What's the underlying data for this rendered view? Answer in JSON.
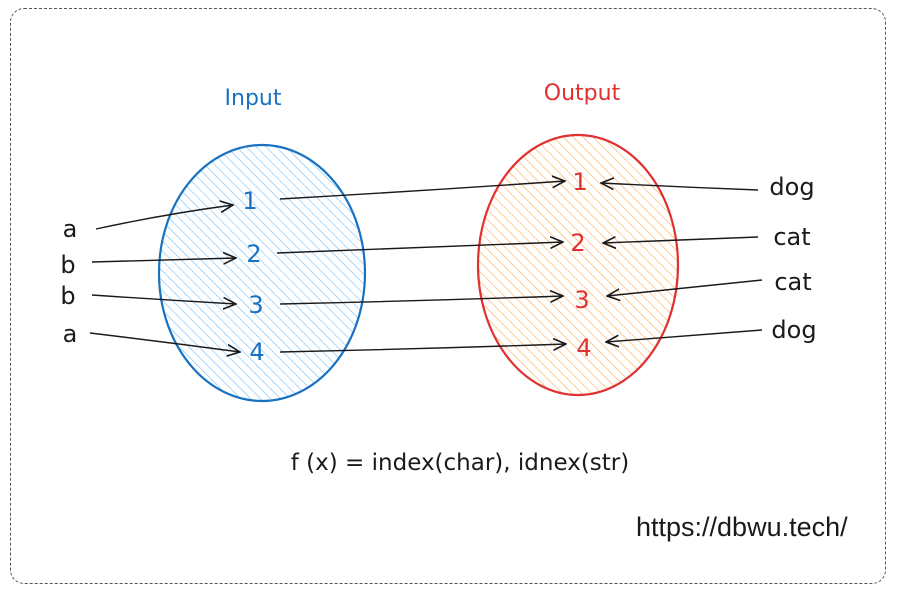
{
  "diagram": {
    "input_title": "Input",
    "output_title": "Output",
    "input_nodes": [
      "1",
      "2",
      "3",
      "4"
    ],
    "output_nodes": [
      "1",
      "2",
      "3",
      "4"
    ],
    "left_labels": [
      "a",
      "b",
      "b",
      "a"
    ],
    "right_labels": [
      "dog",
      "cat",
      "cat",
      "dog"
    ],
    "formula": "f (x) = index(char), idnex(str)",
    "url": "https://dbwu.tech/"
  },
  "colors": {
    "input": "#1971c2",
    "input_fill": "#74c0fc",
    "output": "#e03131",
    "output_fill": "#ffa94d",
    "ink": "#1a1a1a"
  }
}
